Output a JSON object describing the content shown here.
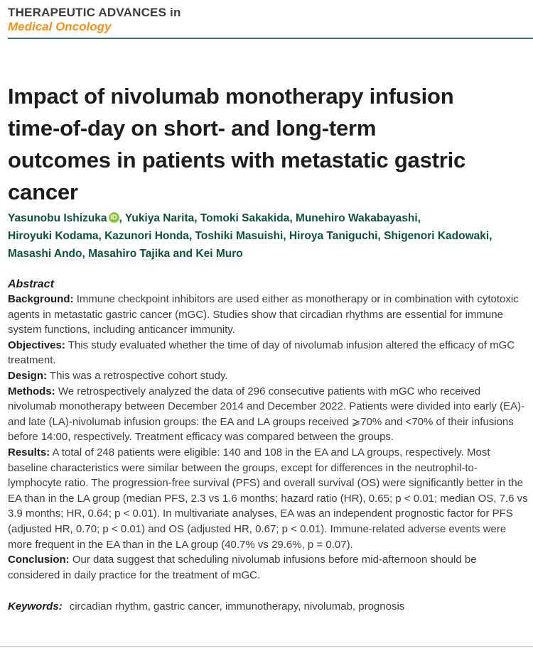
{
  "journal": {
    "series_title": "THERAPEUTIC ADVANCES in",
    "subject": "Medical Oncology"
  },
  "article": {
    "title": "Impact of nivolumab monotherapy infusion time-of-day on short- and long-term outcomes in patients with metastatic gastric cancer",
    "title_lines": [
      "Impact of nivolumab monotherapy infusion",
      "time-of-day on short- and long-term",
      "outcomes in patients with metastatic gastric",
      "cancer"
    ],
    "authors": {
      "line1_before_orcid": "Yasunobu Ishizuka",
      "orcid_badge": "iD",
      "line1_after_orcid": ", Yukiya Narita, Tomoki Sakakida, Munehiro Wakabayashi,",
      "line2": "Hiroyuki Kodama, Kazunori Honda, Toshiki Masuishi, Hiroya Taniguchi, Shigenori Kadowaki,",
      "line3": "Masashi Ando, Masahiro Tajika and Kei Muro"
    }
  },
  "abstract": {
    "heading": "Abstract",
    "sections": [
      {
        "label": "Background:",
        "text": "Immune checkpoint inhibitors are used either as monotherapy or in combination with cytotoxic agents in metastatic gastric cancer (mGC). Studies show that circadian rhythms are essential for immune system functions, including anticancer immunity."
      },
      {
        "label": "Objectives:",
        "text": "This study evaluated whether the time of day of nivolumab infusion altered the efficacy of mGC treatment."
      },
      {
        "label": "Design:",
        "text": "This was a retrospective cohort study."
      },
      {
        "label": "Methods:",
        "text": "We retrospectively analyzed the data of 296 consecutive patients with mGC who received nivolumab monotherapy between December 2014 and December 2022. Patients were divided into early (EA)- and late (LA)-nivolumab infusion groups: the EA and LA groups received ⩾70% and <70% of their infusions before 14:00, respectively. Treatment efficacy was compared between the groups."
      },
      {
        "label": "Results:",
        "text": "A total of 248 patients were eligible: 140 and 108 in the EA and LA groups, respectively. Most baseline characteristics were similar between the groups, except for differences in the neutrophil-to-lymphocyte ratio. The progression-free survival (PFS) and overall survival (OS) were significantly better in the EA than in the LA group (median PFS, 2.3 vs 1.6 months; hazard ratio (HR), 0.65; p < 0.01; median OS, 7.6 vs 3.9 months; HR, 0.64; p < 0.01). In multivariate analyses, EA was an independent prognostic factor for PFS (adjusted HR, 0.70; p < 0.01) and OS (adjusted HR, 0.67; p < 0.01). Immune-related adverse events were more frequent in the EA than in the LA group (40.7% vs 29.6%, p = 0.07)."
      },
      {
        "label": "Conclusion:",
        "text": "Our data suggest that scheduling nivolumab infusions before mid-afternoon should be considered in daily practice for the treatment of mGC."
      }
    ]
  },
  "keywords": {
    "label": "Keywords:",
    "text": "circadian rhythm, gastric cancer, immunotherapy, nivolumab, prognosis"
  },
  "colors": {
    "accent_orange": "#F7941D",
    "accent_teal_rule": "#40705E",
    "author_green": "#0E523C",
    "orcid_green": "#8DC63F",
    "title_black": "#1D1D1B",
    "body_text": "#3C3C3B",
    "bottom_rule_gray": "#D4D4D4"
  }
}
